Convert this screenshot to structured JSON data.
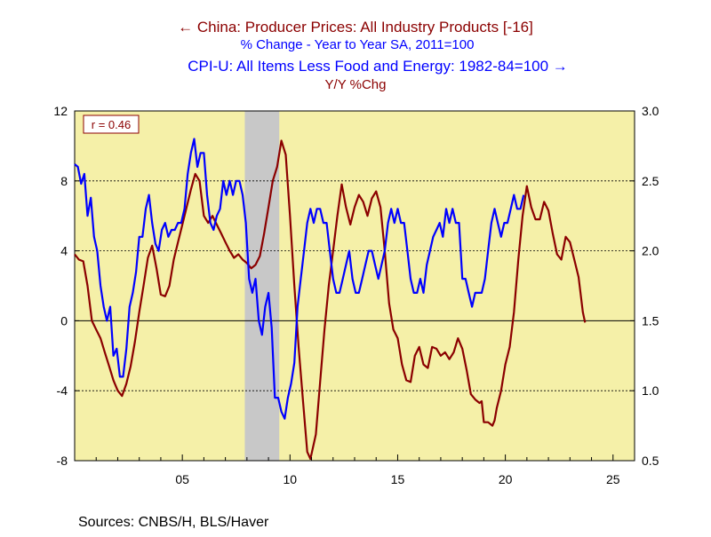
{
  "chart_data": {
    "type": "line",
    "legend": [
      {
        "arrow": "←",
        "text": "China: Producer Prices: All Industry Products [-16]",
        "color": "#8b0000"
      },
      {
        "arrow": "",
        "text": "% Change - Year to Year    SA, 2011=100",
        "color": "#0000ff"
      },
      {
        "arrow": "→",
        "text": "CPI-U: All Items Less Food and Energy: 1982-84=100",
        "color": "#0000ff"
      },
      {
        "arrow": "",
        "text": "Y/Y %Chg",
        "color": "#8b0000"
      }
    ],
    "annotation": "r = 0.46",
    "source": "Sources:  CNBS/H, BLS/Haver",
    "plot_background": "#f5f0a8",
    "recession_band_color": "#c8c8c8",
    "recession_band": [
      2007.9,
      2009.5
    ],
    "x_axis": {
      "range": [
        2000,
        2026
      ],
      "ticks": [
        2005,
        2010,
        2015,
        2020,
        2025
      ],
      "tick_labels": [
        "05",
        "10",
        "15",
        "20",
        "25"
      ]
    },
    "y_left": {
      "range": [
        -8,
        12
      ],
      "ticks": [
        -8,
        -4,
        0,
        4,
        8,
        12
      ],
      "tick_labels": [
        "-8",
        "-4",
        "0",
        "4",
        "8",
        "12"
      ],
      "gridlines": [
        8,
        4,
        0,
        -4
      ]
    },
    "y_right": {
      "range": [
        0.5,
        3.0
      ],
      "ticks": [
        0.5,
        1.0,
        1.5,
        2.0,
        2.5,
        3.0
      ],
      "tick_labels": [
        "0.5",
        "1.0",
        "1.5",
        "2.0",
        "2.5",
        "3.0"
      ]
    },
    "series": [
      {
        "name": "China: Producer Prices: All Industry Products [-16]",
        "axis": "left",
        "color": "#8b0000",
        "points": [
          [
            2000.0,
            3.8
          ],
          [
            2000.2,
            3.5
          ],
          [
            2000.4,
            3.4
          ],
          [
            2000.6,
            2.0
          ],
          [
            2000.8,
            0.0
          ],
          [
            2001.0,
            -0.5
          ],
          [
            2001.2,
            -1.0
          ],
          [
            2001.4,
            -1.8
          ],
          [
            2001.6,
            -2.6
          ],
          [
            2001.8,
            -3.4
          ],
          [
            2002.0,
            -4.0
          ],
          [
            2002.2,
            -4.3
          ],
          [
            2002.4,
            -3.6
          ],
          [
            2002.6,
            -2.6
          ],
          [
            2002.8,
            -1.2
          ],
          [
            2003.0,
            0.5
          ],
          [
            2003.2,
            2.0
          ],
          [
            2003.4,
            3.6
          ],
          [
            2003.6,
            4.3
          ],
          [
            2003.8,
            3.0
          ],
          [
            2004.0,
            1.5
          ],
          [
            2004.2,
            1.4
          ],
          [
            2004.4,
            2.0
          ],
          [
            2004.6,
            3.5
          ],
          [
            2004.8,
            4.5
          ],
          [
            2005.0,
            5.5
          ],
          [
            2005.2,
            6.5
          ],
          [
            2005.4,
            7.5
          ],
          [
            2005.6,
            8.4
          ],
          [
            2005.8,
            8.0
          ],
          [
            2006.0,
            6.0
          ],
          [
            2006.2,
            5.6
          ],
          [
            2006.4,
            6.0
          ],
          [
            2006.6,
            5.5
          ],
          [
            2006.8,
            5.0
          ],
          [
            2007.0,
            4.5
          ],
          [
            2007.2,
            4.0
          ],
          [
            2007.4,
            3.6
          ],
          [
            2007.6,
            3.8
          ],
          [
            2007.8,
            3.5
          ],
          [
            2008.0,
            3.3
          ],
          [
            2008.2,
            3.0
          ],
          [
            2008.4,
            3.2
          ],
          [
            2008.6,
            3.7
          ],
          [
            2008.8,
            5.0
          ],
          [
            2009.0,
            6.5
          ],
          [
            2009.2,
            8.0
          ],
          [
            2009.4,
            8.8
          ],
          [
            2009.6,
            10.3
          ],
          [
            2009.8,
            9.5
          ],
          [
            2010.0,
            6.0
          ],
          [
            2010.2,
            2.0
          ],
          [
            2010.4,
            -1.5
          ],
          [
            2010.6,
            -4.5
          ],
          [
            2010.8,
            -7.5
          ],
          [
            2010.95,
            -7.9
          ],
          [
            2011.2,
            -6.5
          ],
          [
            2011.4,
            -3.5
          ],
          [
            2011.6,
            -0.5
          ],
          [
            2011.8,
            2.0
          ],
          [
            2012.0,
            4.0
          ],
          [
            2012.2,
            6.0
          ],
          [
            2012.4,
            7.8
          ],
          [
            2012.6,
            6.5
          ],
          [
            2012.8,
            5.5
          ],
          [
            2013.0,
            6.5
          ],
          [
            2013.2,
            7.2
          ],
          [
            2013.4,
            6.8
          ],
          [
            2013.6,
            6.0
          ],
          [
            2013.8,
            7.0
          ],
          [
            2014.0,
            7.4
          ],
          [
            2014.2,
            6.5
          ],
          [
            2014.4,
            4.0
          ],
          [
            2014.6,
            1.0
          ],
          [
            2014.8,
            -0.5
          ],
          [
            2015.0,
            -1.0
          ],
          [
            2015.2,
            -2.5
          ],
          [
            2015.4,
            -3.4
          ],
          [
            2015.6,
            -3.5
          ],
          [
            2015.8,
            -2.0
          ],
          [
            2016.0,
            -1.5
          ],
          [
            2016.2,
            -2.5
          ],
          [
            2016.4,
            -2.7
          ],
          [
            2016.6,
            -1.5
          ],
          [
            2016.8,
            -1.6
          ],
          [
            2017.0,
            -2.0
          ],
          [
            2017.2,
            -1.8
          ],
          [
            2017.4,
            -2.2
          ],
          [
            2017.6,
            -1.8
          ],
          [
            2017.8,
            -1.0
          ],
          [
            2018.0,
            -1.6
          ],
          [
            2018.2,
            -2.8
          ],
          [
            2018.4,
            -4.2
          ],
          [
            2018.6,
            -4.5
          ],
          [
            2018.8,
            -4.7
          ],
          [
            2018.9,
            -4.6
          ],
          [
            2019.0,
            -5.8
          ],
          [
            2019.2,
            -5.8
          ],
          [
            2019.4,
            -6.0
          ],
          [
            2019.5,
            -5.7
          ],
          [
            2019.6,
            -5.0
          ],
          [
            2019.8,
            -4.0
          ],
          [
            2020.0,
            -2.5
          ],
          [
            2020.2,
            -1.5
          ],
          [
            2020.4,
            0.5
          ],
          [
            2020.6,
            3.5
          ],
          [
            2020.8,
            6.0
          ],
          [
            2021.0,
            7.7
          ],
          [
            2021.2,
            6.5
          ],
          [
            2021.4,
            5.8
          ],
          [
            2021.6,
            5.8
          ],
          [
            2021.8,
            6.8
          ],
          [
            2022.0,
            6.3
          ],
          [
            2022.2,
            5.0
          ],
          [
            2022.4,
            3.8
          ],
          [
            2022.6,
            3.5
          ],
          [
            2022.8,
            4.8
          ],
          [
            2023.0,
            4.5
          ],
          [
            2023.2,
            3.5
          ],
          [
            2023.4,
            2.5
          ],
          [
            2023.6,
            0.5
          ],
          [
            2023.7,
            -0.1
          ]
        ]
      },
      {
        "name": "CPI-U: All Items Less Food and Energy: 1982-84=100",
        "axis": "right",
        "color": "#0000ff",
        "points": [
          [
            2000.0,
            2.62
          ],
          [
            2000.15,
            2.6
          ],
          [
            2000.3,
            2.48
          ],
          [
            2000.45,
            2.55
          ],
          [
            2000.6,
            2.25
          ],
          [
            2000.75,
            2.38
          ],
          [
            2000.9,
            2.1
          ],
          [
            2001.05,
            2.0
          ],
          [
            2001.2,
            1.75
          ],
          [
            2001.35,
            1.6
          ],
          [
            2001.5,
            1.5
          ],
          [
            2001.65,
            1.6
          ],
          [
            2001.8,
            1.25
          ],
          [
            2001.95,
            1.3
          ],
          [
            2002.1,
            1.1
          ],
          [
            2002.25,
            1.1
          ],
          [
            2002.4,
            1.3
          ],
          [
            2002.55,
            1.6
          ],
          [
            2002.7,
            1.7
          ],
          [
            2002.85,
            1.85
          ],
          [
            2003.0,
            2.1
          ],
          [
            2003.15,
            2.1
          ],
          [
            2003.3,
            2.3
          ],
          [
            2003.45,
            2.4
          ],
          [
            2003.6,
            2.2
          ],
          [
            2003.75,
            2.05
          ],
          [
            2003.9,
            2.0
          ],
          [
            2004.05,
            2.15
          ],
          [
            2004.2,
            2.2
          ],
          [
            2004.35,
            2.1
          ],
          [
            2004.5,
            2.15
          ],
          [
            2004.65,
            2.15
          ],
          [
            2004.8,
            2.2
          ],
          [
            2004.95,
            2.2
          ],
          [
            2005.1,
            2.3
          ],
          [
            2005.25,
            2.55
          ],
          [
            2005.4,
            2.7
          ],
          [
            2005.55,
            2.8
          ],
          [
            2005.7,
            2.6
          ],
          [
            2005.85,
            2.7
          ],
          [
            2006.0,
            2.7
          ],
          [
            2006.15,
            2.4
          ],
          [
            2006.3,
            2.2
          ],
          [
            2006.45,
            2.15
          ],
          [
            2006.6,
            2.25
          ],
          [
            2006.75,
            2.3
          ],
          [
            2006.9,
            2.5
          ],
          [
            2007.05,
            2.4
          ],
          [
            2007.2,
            2.5
          ],
          [
            2007.35,
            2.4
          ],
          [
            2007.5,
            2.5
          ],
          [
            2007.65,
            2.5
          ],
          [
            2007.8,
            2.4
          ],
          [
            2007.95,
            2.2
          ],
          [
            2008.1,
            1.8
          ],
          [
            2008.25,
            1.7
          ],
          [
            2008.4,
            1.8
          ],
          [
            2008.55,
            1.5
          ],
          [
            2008.7,
            1.4
          ],
          [
            2008.85,
            1.6
          ],
          [
            2009.0,
            1.7
          ],
          [
            2009.15,
            1.45
          ],
          [
            2009.3,
            0.95
          ],
          [
            2009.45,
            0.95
          ],
          [
            2009.6,
            0.85
          ],
          [
            2009.75,
            0.8
          ],
          [
            2009.9,
            0.95
          ],
          [
            2010.05,
            1.05
          ],
          [
            2010.2,
            1.2
          ],
          [
            2010.35,
            1.6
          ],
          [
            2010.5,
            1.8
          ],
          [
            2010.65,
            2.0
          ],
          [
            2010.8,
            2.2
          ],
          [
            2010.95,
            2.3
          ],
          [
            2011.1,
            2.2
          ],
          [
            2011.25,
            2.3
          ],
          [
            2011.4,
            2.3
          ],
          [
            2011.55,
            2.2
          ],
          [
            2011.7,
            2.2
          ],
          [
            2011.85,
            2.0
          ],
          [
            2012.0,
            1.8
          ],
          [
            2012.15,
            1.7
          ],
          [
            2012.3,
            1.7
          ],
          [
            2012.45,
            1.8
          ],
          [
            2012.6,
            1.9
          ],
          [
            2012.75,
            2.0
          ],
          [
            2012.9,
            1.8
          ],
          [
            2013.05,
            1.7
          ],
          [
            2013.2,
            1.7
          ],
          [
            2013.35,
            1.8
          ],
          [
            2013.5,
            1.9
          ],
          [
            2013.65,
            2.0
          ],
          [
            2013.8,
            2.0
          ],
          [
            2013.95,
            1.9
          ],
          [
            2014.1,
            1.8
          ],
          [
            2014.25,
            1.9
          ],
          [
            2014.4,
            2.0
          ],
          [
            2014.55,
            2.2
          ],
          [
            2014.7,
            2.3
          ],
          [
            2014.85,
            2.2
          ],
          [
            2015.0,
            2.3
          ],
          [
            2015.15,
            2.2
          ],
          [
            2015.3,
            2.2
          ],
          [
            2015.45,
            2.0
          ],
          [
            2015.6,
            1.8
          ],
          [
            2015.75,
            1.7
          ],
          [
            2015.9,
            1.7
          ],
          [
            2016.05,
            1.8
          ],
          [
            2016.2,
            1.7
          ],
          [
            2016.35,
            1.9
          ],
          [
            2016.5,
            2.0
          ],
          [
            2016.65,
            2.1
          ],
          [
            2016.8,
            2.15
          ],
          [
            2016.95,
            2.2
          ],
          [
            2017.1,
            2.1
          ],
          [
            2017.25,
            2.3
          ],
          [
            2017.4,
            2.2
          ],
          [
            2017.55,
            2.3
          ],
          [
            2017.7,
            2.2
          ],
          [
            2017.85,
            2.2
          ],
          [
            2018.0,
            1.8
          ],
          [
            2018.15,
            1.8
          ],
          [
            2018.3,
            1.7
          ],
          [
            2018.45,
            1.6
          ],
          [
            2018.6,
            1.7
          ],
          [
            2018.75,
            1.7
          ],
          [
            2018.9,
            1.7
          ],
          [
            2019.05,
            1.8
          ],
          [
            2019.2,
            2.0
          ],
          [
            2019.35,
            2.2
          ],
          [
            2019.5,
            2.3
          ],
          [
            2019.65,
            2.2
          ],
          [
            2019.8,
            2.1
          ],
          [
            2019.95,
            2.2
          ],
          [
            2020.1,
            2.2
          ],
          [
            2020.25,
            2.3
          ],
          [
            2020.4,
            2.4
          ],
          [
            2020.55,
            2.3
          ],
          [
            2020.7,
            2.3
          ],
          [
            2020.85,
            2.4
          ]
        ]
      }
    ]
  }
}
